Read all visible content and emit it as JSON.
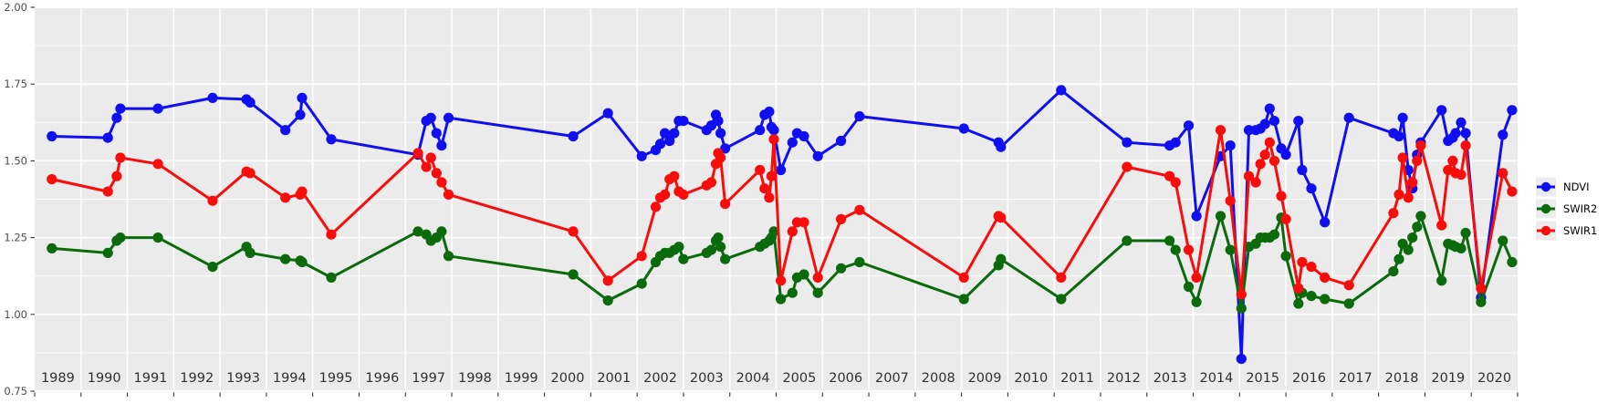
{
  "chart_data": {
    "type": "line",
    "title": "",
    "xlabel": "",
    "ylabel": "",
    "x_ticks": [
      "1989",
      "1990",
      "1991",
      "1992",
      "1993",
      "1994",
      "1995",
      "1996",
      "1997",
      "1998",
      "1999",
      "2000",
      "2001",
      "2002",
      "2003",
      "2004",
      "2005",
      "2006",
      "2007",
      "2008",
      "2009",
      "2010",
      "2011",
      "2012",
      "2013",
      "2014",
      "2015",
      "2016",
      "2017",
      "2018",
      "2019",
      "2020"
    ],
    "y_ticks": [
      "2.00",
      "1.75",
      "1.50",
      "1.25",
      "1.00",
      "0.75"
    ],
    "y_tick_values": [
      2.0,
      1.75,
      1.5,
      1.25,
      1.0,
      0.75
    ],
    "y_minor_values": [
      1.875,
      1.625,
      1.375,
      1.125,
      0.875
    ],
    "ylim": [
      0.75,
      2.0
    ],
    "xlim": [
      1989,
      2021
    ],
    "grid": true,
    "legend_position": "right",
    "x": [
      1989.37,
      1990.58,
      1990.77,
      1990.85,
      1991.66,
      1992.84,
      1993.57,
      1993.65,
      1994.41,
      1994.73,
      1994.77,
      1995.4,
      1997.27,
      1997.45,
      1997.55,
      1997.67,
      1997.78,
      1997.93,
      2000.62,
      2001.37,
      2002.1,
      2002.4,
      2002.5,
      2002.6,
      2002.7,
      2002.8,
      2002.9,
      2003.0,
      2003.5,
      2003.6,
      2003.7,
      2003.75,
      2003.8,
      2003.9,
      2004.65,
      2004.75,
      2004.85,
      2004.9,
      2004.95,
      2005.1,
      2005.35,
      2005.45,
      2005.6,
      2005.9,
      2006.4,
      2006.8,
      2009.05,
      2009.8,
      2009.85,
      2011.15,
      2012.57,
      2013.49,
      2013.62,
      2013.9,
      2014.07,
      2014.59,
      2014.8,
      2015.04,
      2015.2,
      2015.35,
      2015.45,
      2015.55,
      2015.65,
      2015.75,
      2015.9,
      2016.0,
      2016.27,
      2016.35,
      2016.55,
      2016.84,
      2017.36,
      2018.32,
      2018.44,
      2018.52,
      2018.64,
      2018.73,
      2018.83,
      2018.91,
      2019.36,
      2019.5,
      2019.6,
      2019.66,
      2019.78,
      2019.88,
      2020.21,
      2020.68,
      2020.88
    ],
    "series": [
      {
        "name": "NDVI",
        "color": "#0F0FF0",
        "values": [
          1.58,
          1.575,
          1.64,
          1.67,
          1.67,
          1.705,
          1.7,
          1.69,
          1.6,
          1.65,
          1.705,
          1.57,
          1.52,
          1.63,
          1.64,
          1.59,
          1.55,
          1.64,
          1.58,
          1.655,
          1.515,
          1.535,
          1.555,
          1.59,
          1.565,
          1.59,
          1.63,
          1.63,
          1.6,
          1.615,
          1.65,
          1.63,
          1.59,
          1.54,
          1.6,
          1.65,
          1.66,
          1.61,
          1.6,
          1.47,
          1.56,
          1.59,
          1.58,
          1.515,
          1.565,
          1.645,
          1.605,
          1.56,
          1.545,
          1.73,
          1.56,
          1.55,
          1.56,
          1.615,
          1.32,
          1.515,
          1.55,
          0.855,
          1.6,
          1.6,
          1.605,
          1.62,
          1.67,
          1.63,
          1.54,
          1.52,
          1.63,
          1.47,
          1.41,
          1.3,
          1.64,
          1.59,
          1.58,
          1.64,
          1.47,
          1.41,
          1.52,
          1.56,
          1.665,
          1.565,
          1.575,
          1.59,
          1.625,
          1.59,
          1.055,
          1.585,
          1.665
        ]
      },
      {
        "name": "SWIR2",
        "color": "#0B6A0B",
        "values": [
          1.215,
          1.2,
          1.24,
          1.25,
          1.25,
          1.155,
          1.22,
          1.2,
          1.18,
          1.175,
          1.17,
          1.12,
          1.27,
          1.26,
          1.24,
          1.25,
          1.27,
          1.19,
          1.13,
          1.045,
          1.1,
          1.17,
          1.19,
          1.2,
          1.2,
          1.21,
          1.22,
          1.18,
          1.2,
          1.21,
          1.24,
          1.25,
          1.22,
          1.18,
          1.22,
          1.23,
          1.24,
          1.25,
          1.27,
          1.05,
          1.07,
          1.12,
          1.13,
          1.07,
          1.15,
          1.17,
          1.05,
          1.16,
          1.18,
          1.05,
          1.24,
          1.24,
          1.21,
          1.09,
          1.04,
          1.32,
          1.21,
          1.02,
          1.22,
          1.23,
          1.25,
          1.25,
          1.25,
          1.26,
          1.315,
          1.19,
          1.035,
          1.07,
          1.06,
          1.05,
          1.035,
          1.14,
          1.18,
          1.23,
          1.21,
          1.25,
          1.285,
          1.32,
          1.11,
          1.23,
          1.225,
          1.22,
          1.215,
          1.265,
          1.04,
          1.24,
          1.17
        ]
      },
      {
        "name": "SWIR1",
        "color": "#F70D0B",
        "values": [
          1.44,
          1.4,
          1.45,
          1.51,
          1.49,
          1.37,
          1.465,
          1.46,
          1.38,
          1.39,
          1.4,
          1.26,
          1.525,
          1.48,
          1.51,
          1.46,
          1.43,
          1.39,
          1.27,
          1.11,
          1.19,
          1.35,
          1.38,
          1.39,
          1.44,
          1.45,
          1.4,
          1.39,
          1.42,
          1.43,
          1.49,
          1.525,
          1.51,
          1.36,
          1.47,
          1.41,
          1.38,
          1.45,
          1.57,
          1.11,
          1.27,
          1.3,
          1.3,
          1.12,
          1.31,
          1.34,
          1.12,
          1.32,
          1.315,
          1.12,
          1.48,
          1.45,
          1.43,
          1.21,
          1.12,
          1.6,
          1.37,
          1.065,
          1.45,
          1.43,
          1.49,
          1.52,
          1.56,
          1.5,
          1.385,
          1.31,
          1.085,
          1.17,
          1.155,
          1.12,
          1.095,
          1.33,
          1.39,
          1.51,
          1.38,
          1.43,
          1.5,
          1.55,
          1.29,
          1.47,
          1.5,
          1.46,
          1.455,
          1.55,
          1.085,
          1.46,
          1.4
        ]
      }
    ],
    "legend": {
      "items": [
        {
          "label": "NDVI",
          "color": "#0F0FF0"
        },
        {
          "label": "SWIR2",
          "color": "#0B6A0B"
        },
        {
          "label": "SWIR1",
          "color": "#F70D0B"
        }
      ]
    },
    "colors": {
      "panel_background": "#EBEBEB",
      "gridline": "#FFFFFF",
      "axis_text": "#4D4D4D",
      "x_axis_text": "#303030",
      "tick_mark": "#333333",
      "legend_key_background": "#ECECEC",
      "legend_text": "#000000"
    }
  }
}
